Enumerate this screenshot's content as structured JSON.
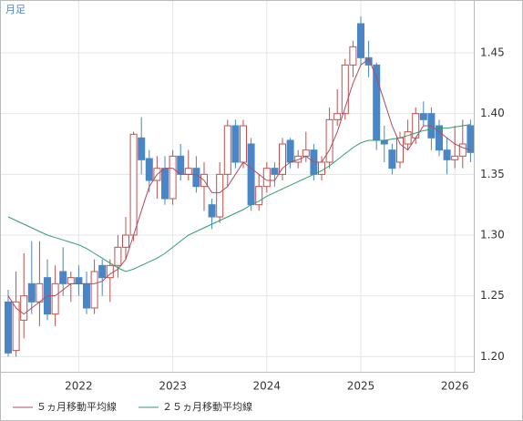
{
  "chart_data": {
    "type": "candlestick",
    "label": "月足",
    "categories": [
      null,
      null,
      null,
      null,
      null,
      null,
      null,
      null,
      null,
      "2022",
      null,
      null,
      null,
      null,
      null,
      null,
      null,
      null,
      null,
      null,
      null,
      "2023",
      null,
      null,
      null,
      null,
      null,
      null,
      null,
      null,
      null,
      null,
      null,
      "2024",
      null,
      null,
      null,
      null,
      null,
      null,
      null,
      null,
      null,
      null,
      null,
      "2025",
      null,
      null,
      null,
      null,
      null,
      null,
      null,
      null,
      null,
      null,
      null,
      "2026",
      null,
      null
    ],
    "open": [
      1.245,
      1.205,
      1.23,
      1.26,
      1.245,
      1.265,
      1.235,
      1.27,
      1.26,
      1.265,
      1.26,
      1.24,
      1.275,
      1.265,
      1.275,
      1.29,
      1.3,
      1.38,
      1.363,
      1.345,
      1.355,
      1.33,
      1.365,
      1.35,
      1.355,
      1.34,
      1.325,
      1.315,
      1.35,
      1.39,
      1.36,
      1.375,
      1.325,
      1.34,
      1.355,
      1.35,
      1.378,
      1.36,
      1.365,
      1.37,
      1.35,
      1.36,
      1.395,
      1.4,
      1.44,
      1.474,
      1.446,
      1.44,
      1.378,
      1.37,
      1.36,
      1.375,
      1.38,
      1.4,
      1.4,
      1.39,
      1.37,
      1.362,
      1.365,
      1.39
    ],
    "high": [
      1.255,
      1.27,
      1.285,
      1.295,
      1.295,
      1.28,
      1.275,
      1.29,
      1.27,
      1.275,
      1.27,
      1.28,
      1.28,
      1.28,
      1.3,
      1.315,
      1.385,
      1.397,
      1.37,
      1.365,
      1.365,
      1.37,
      1.375,
      1.37,
      1.365,
      1.36,
      1.33,
      1.36,
      1.395,
      1.395,
      1.395,
      1.38,
      1.35,
      1.36,
      1.36,
      1.38,
      1.38,
      1.37,
      1.385,
      1.375,
      1.365,
      1.405,
      1.42,
      1.445,
      1.46,
      1.48,
      1.46,
      1.442,
      1.39,
      1.375,
      1.385,
      1.395,
      1.405,
      1.41,
      1.405,
      1.395,
      1.38,
      1.39,
      1.395,
      1.395
    ],
    "low": [
      1.2,
      1.2,
      1.215,
      1.235,
      1.225,
      1.23,
      1.225,
      1.25,
      1.245,
      1.25,
      1.235,
      1.235,
      1.25,
      1.245,
      1.265,
      1.28,
      1.295,
      1.35,
      1.335,
      1.33,
      1.325,
      1.325,
      1.345,
      1.345,
      1.335,
      1.32,
      1.305,
      1.31,
      1.34,
      1.355,
      1.355,
      1.32,
      1.32,
      1.335,
      1.34,
      1.345,
      1.355,
      1.355,
      1.36,
      1.345,
      1.345,
      1.355,
      1.39,
      1.395,
      1.43,
      1.44,
      1.43,
      1.37,
      1.36,
      1.35,
      1.355,
      1.37,
      1.375,
      1.39,
      1.37,
      1.365,
      1.35,
      1.355,
      1.355,
      1.36
    ],
    "close": [
      1.203,
      1.245,
      1.25,
      1.245,
      1.26,
      1.235,
      1.26,
      1.26,
      1.265,
      1.26,
      1.24,
      1.27,
      1.265,
      1.275,
      1.29,
      1.3,
      1.383,
      1.362,
      1.345,
      1.355,
      1.33,
      1.365,
      1.35,
      1.355,
      1.34,
      1.35,
      1.315,
      1.35,
      1.39,
      1.36,
      1.39,
      1.325,
      1.34,
      1.355,
      1.35,
      1.375,
      1.36,
      1.365,
      1.37,
      1.35,
      1.36,
      1.395,
      1.4,
      1.44,
      1.455,
      1.446,
      1.44,
      1.378,
      1.375,
      1.355,
      1.38,
      1.385,
      1.4,
      1.395,
      1.38,
      1.37,
      1.362,
      1.365,
      1.375,
      1.368
    ],
    "up_color": "#c0504d",
    "down_color": "#4a86c5",
    "series": [
      {
        "name": "５ヵ月移動平均線",
        "color": "#b5485f",
        "values": [
          1.25,
          1.24,
          1.235,
          1.24,
          1.245,
          1.25,
          1.25,
          1.255,
          1.26,
          1.26,
          1.26,
          1.26,
          1.262,
          1.268,
          1.272,
          1.28,
          1.3,
          1.32,
          1.34,
          1.35,
          1.355,
          1.355,
          1.35,
          1.35,
          1.35,
          1.345,
          1.335,
          1.335,
          1.34,
          1.35,
          1.36,
          1.355,
          1.35,
          1.345,
          1.345,
          1.355,
          1.36,
          1.362,
          1.365,
          1.36,
          1.36,
          1.37,
          1.385,
          1.405,
          1.425,
          1.44,
          1.445,
          1.43,
          1.41,
          1.39,
          1.375,
          1.37,
          1.38,
          1.39,
          1.39,
          1.385,
          1.38,
          1.375,
          1.372,
          1.37
        ]
      },
      {
        "name": "２５ヵ月移動平均線",
        "color": "#2e9e6e",
        "values": [
          1.315,
          1.312,
          1.309,
          1.306,
          1.303,
          1.3,
          1.298,
          1.296,
          1.294,
          1.292,
          1.289,
          1.285,
          1.281,
          1.277,
          1.273,
          1.27,
          1.272,
          1.275,
          1.278,
          1.281,
          1.285,
          1.29,
          1.295,
          1.3,
          1.303,
          1.306,
          1.309,
          1.312,
          1.315,
          1.318,
          1.321,
          1.325,
          1.328,
          1.332,
          1.335,
          1.338,
          1.341,
          1.344,
          1.347,
          1.35,
          1.353,
          1.357,
          1.362,
          1.367,
          1.372,
          1.376,
          1.378,
          1.378,
          1.378,
          1.379,
          1.38,
          1.382,
          1.384,
          1.386,
          1.387,
          1.388,
          1.388,
          1.389,
          1.39,
          1.391
        ]
      }
    ],
    "ylim": [
      1.1875,
      1.4935
    ],
    "yticks": [
      {
        "value": 1.2,
        "label": "1.20"
      },
      1.25,
      {
        "value": 1.3,
        "label": "1.30"
      },
      1.35,
      {
        "value": 1.4,
        "label": "1.40"
      },
      1.45
    ],
    "grid": true
  }
}
